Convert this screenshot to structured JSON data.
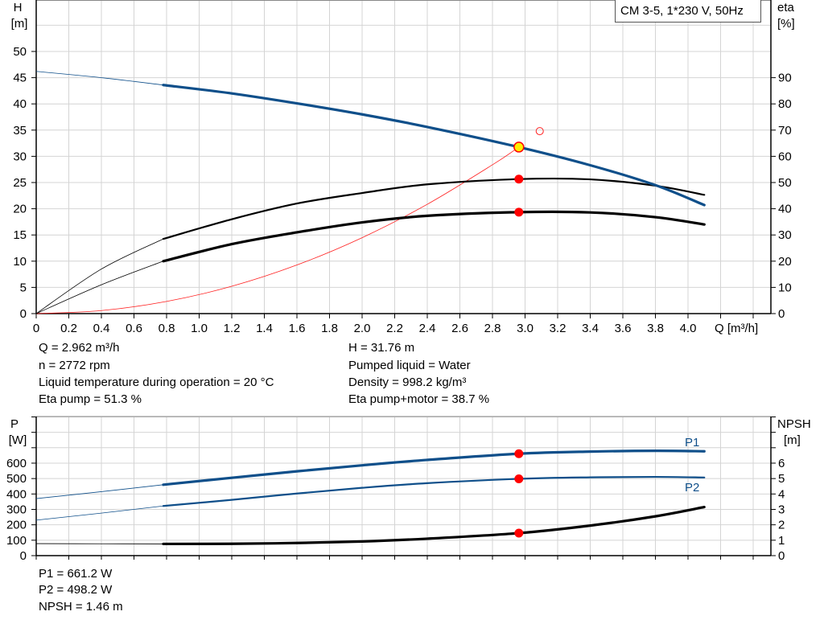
{
  "legend": "CM 3-5, 1*230 V, 50Hz",
  "colors": {
    "head": "#0f4f8a",
    "efficiency": "#000000",
    "system": "#ff2020",
    "duty_point": "#ff0000",
    "duty_fill": "#ffee00",
    "grid": "#d4d4d4"
  },
  "info_top": {
    "left": [
      "Q = 2.962 m³/h",
      "n = 2772 rpm",
      "Liquid temperature during operation = 20 °C",
      "Eta pump = 51.3 %"
    ],
    "right": [
      "H = 31.76 m",
      "Pumped liquid = Water",
      "Density = 998.2 kg/m³",
      "Eta pump+motor = 38.7 %"
    ]
  },
  "info_bottom": [
    "P1 = 661.2 W",
    "P2 = 498.2 W",
    "NPSH = 1.46 m"
  ],
  "chart_data": [
    {
      "type": "line",
      "xlabel": "Q [m³/h]",
      "ylabel_left": [
        "H",
        "[m]"
      ],
      "ylabel_right": [
        "eta",
        "[%]"
      ],
      "xlim": [
        0,
        4.4
      ],
      "ylim_left": [
        0,
        60
      ],
      "ylim_right": [
        0,
        120
      ],
      "x_ticks": [
        "0",
        "0.2",
        "0.4",
        "0.6",
        "0.8",
        "1.0",
        "1.2",
        "1.4",
        "1.6",
        "1.8",
        "2.0",
        "2.2",
        "2.4",
        "2.6",
        "2.8",
        "3.0",
        "3.2",
        "3.4",
        "3.6",
        "3.8",
        "4.0"
      ],
      "y_left_ticks": [
        "0",
        "5",
        "10",
        "15",
        "20",
        "25",
        "30",
        "35",
        "40",
        "45",
        "50"
      ],
      "y_right_ticks": [
        "0",
        "10",
        "20",
        "30",
        "40",
        "50",
        "60",
        "70",
        "80",
        "90"
      ],
      "grid": true,
      "series": [
        {
          "key": "head",
          "axis": "left",
          "x": [
            0,
            0.4,
            0.78,
            1.2,
            1.6,
            2.0,
            2.4,
            2.962,
            3.4,
            3.8,
            4.1
          ],
          "y": [
            46.2,
            45.0,
            43.6,
            42.0,
            40.1,
            38.0,
            35.6,
            31.76,
            28.3,
            24.5,
            20.7
          ]
        },
        {
          "key": "eta_pump",
          "axis": "right",
          "x": [
            0,
            0.4,
            0.78,
            1.2,
            1.6,
            2.0,
            2.4,
            2.962,
            3.4,
            3.8,
            4.1
          ],
          "y": [
            0,
            17,
            28.5,
            36,
            42,
            46,
            49.3,
            51.3,
            51.2,
            48.8,
            45.3
          ]
        },
        {
          "key": "eta_total",
          "axis": "right",
          "x": [
            0,
            0.4,
            0.78,
            1.2,
            1.6,
            2.0,
            2.4,
            2.962,
            3.4,
            3.8,
            4.1
          ],
          "y": [
            0,
            11,
            20,
            26.5,
            31,
            34.8,
            37.3,
            38.7,
            38.6,
            36.8,
            34.0
          ]
        },
        {
          "key": "system",
          "axis": "left",
          "x": [
            0,
            0.4,
            0.8,
            1.2,
            1.6,
            2.0,
            2.4,
            2.8,
            2.962
          ],
          "y": [
            0,
            0.58,
            2.32,
            5.21,
            9.27,
            14.48,
            20.85,
            28.38,
            31.76
          ]
        }
      ],
      "duty_point": {
        "q": 2.962,
        "h": 31.76,
        "eta_pump": 51.3,
        "eta_total": 38.7
      },
      "requested_point": {
        "q": 3.09,
        "h": 34.8
      }
    },
    {
      "type": "line",
      "ylabel_left": [
        "P",
        "[W]"
      ],
      "ylabel_right": [
        "NPSH",
        "[m]"
      ],
      "xlim": [
        0,
        4.4
      ],
      "ylim_left": [
        0,
        900
      ],
      "ylim_right": [
        0,
        9
      ],
      "y_left_ticks": [
        "0",
        "100",
        "200",
        "300",
        "400",
        "500",
        "600"
      ],
      "y_right_ticks": [
        "0",
        "1",
        "2",
        "3",
        "4",
        "5",
        "6"
      ],
      "grid": true,
      "series": [
        {
          "name": "P1",
          "key": "p1",
          "axis": "left",
          "x": [
            0,
            0.4,
            0.78,
            1.2,
            1.6,
            2.0,
            2.4,
            2.962,
            3.4,
            3.8,
            4.1
          ],
          "y": [
            370,
            415,
            460,
            505,
            547,
            586,
            621,
            661.2,
            675,
            680,
            677
          ]
        },
        {
          "name": "P2",
          "key": "p2",
          "axis": "left",
          "x": [
            0,
            0.4,
            0.78,
            1.2,
            1.6,
            2.0,
            2.4,
            2.962,
            3.4,
            3.8,
            4.1
          ],
          "y": [
            230,
            276,
            322,
            362,
            403,
            440,
            470,
            498.2,
            508,
            511,
            507
          ]
        },
        {
          "key": "npsh",
          "axis": "right",
          "x": [
            0,
            0.4,
            0.78,
            1.2,
            1.6,
            2.0,
            2.4,
            2.962,
            3.4,
            3.8,
            4.1
          ],
          "y": [
            0.78,
            0.77,
            0.76,
            0.77,
            0.82,
            0.92,
            1.1,
            1.46,
            1.95,
            2.55,
            3.15
          ]
        }
      ],
      "duty_point": {
        "q": 2.962,
        "p1": 661.2,
        "p2": 498.2,
        "npsh": 1.46
      }
    }
  ]
}
